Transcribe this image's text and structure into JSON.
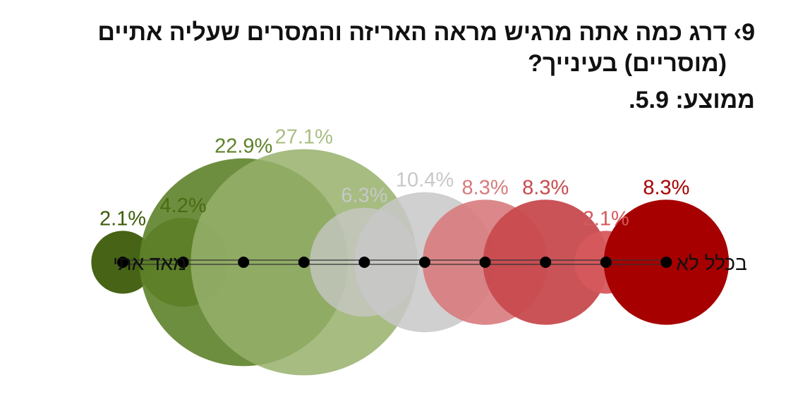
{
  "question": {
    "number": "9",
    "line1": "9› דרג כמה אתה מרגיש מראה האריזה והמסרים שעליה אתיים",
    "line2": "(מוסריים) בעינייך?",
    "average": "ממוצע: 5.9."
  },
  "chart_data": {
    "type": "bubble-scale",
    "title": "",
    "categories": [
      1,
      2,
      3,
      4,
      5,
      6,
      7,
      8,
      9,
      10
    ],
    "values": [
      2.1,
      4.2,
      22.9,
      27.1,
      6.3,
      10.4,
      8.3,
      8.3,
      2.1,
      8.3
    ],
    "labels": [
      "2.1%",
      "4.2%",
      "22.9%",
      "27.1%",
      "6.3%",
      "10.4%",
      "8.3%",
      "8.3%",
      "2.1%",
      "8.3%"
    ],
    "left_label": "מאד אתי",
    "right_label": "בכלל לא",
    "colors": [
      "#3d5c0a",
      "#4a6b12",
      "#5e822a",
      "#97b06b",
      "#c8c8c8",
      "#c8c8c8",
      "#d87a7c",
      "#c74a4e",
      "#d5595d",
      "#a60000"
    ],
    "label_colors": [
      "#3d5c0a",
      "#4a6b12",
      "#5e822a",
      "#a8be83",
      "#c8c8c8",
      "#c8c8c8",
      "#d87a7c",
      "#c74a4e",
      "#d5595d",
      "#a60000"
    ]
  }
}
